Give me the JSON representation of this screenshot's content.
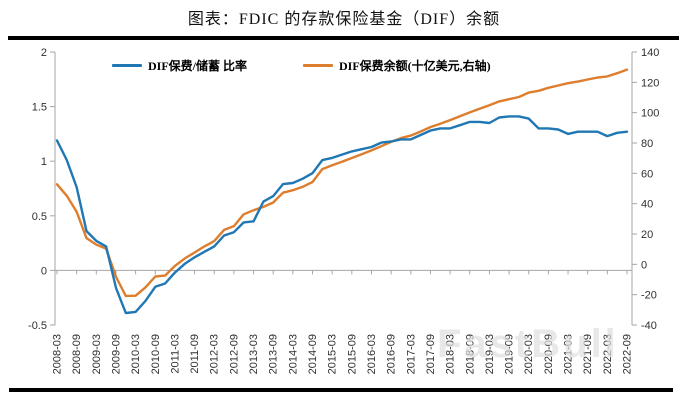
{
  "page": {
    "title": "图表：FDIC 的存款保险基金（DIF）余额"
  },
  "legend": {
    "items": [
      {
        "label": "DIF保费/储蓄 比率",
        "color": "#1f77b4"
      },
      {
        "label": "DIF保费余额(十亿美元,右轴)",
        "color": "#dd7e2e"
      }
    ]
  },
  "watermark": {
    "text": "FastBull"
  },
  "chart_data": {
    "type": "line",
    "title": "图表：FDIC 的存款保险基金（DIF）余额",
    "x_start": "2008-03",
    "x_step_months": 3,
    "x_tick_labels": [
      "2008-03",
      "2008-09",
      "2009-03",
      "2009-09",
      "2010-03",
      "2010-09",
      "2011-03",
      "2011-09",
      "2012-03",
      "2012-09",
      "2013-03",
      "2013-09",
      "2014-03",
      "2014-09",
      "2015-03",
      "2015-09",
      "2016-03",
      "2016-09",
      "2017-03",
      "2017-09",
      "2018-03",
      "2018-09",
      "2019-03",
      "2019-09",
      "2020-03",
      "2020-09",
      "2021-03",
      "2021-09",
      "2022-03",
      "2022-09"
    ],
    "left_axis": {
      "min": -0.5,
      "max": 2,
      "ticks": [
        2,
        1.5,
        1,
        0.5,
        0,
        -0.5
      ]
    },
    "right_axis": {
      "min": -40,
      "max": 140,
      "ticks": [
        140,
        120,
        100,
        80,
        60,
        40,
        20,
        0,
        -20,
        -40
      ]
    },
    "grid": false,
    "legend_position": "top",
    "series": [
      {
        "name": "DIF保费/储蓄 比率",
        "axis": "left",
        "color": "#1f77b4",
        "values": [
          1.19,
          1.01,
          0.76,
          0.36,
          0.27,
          0.22,
          -0.16,
          -0.39,
          -0.38,
          -0.28,
          -0.15,
          -0.12,
          -0.02,
          0.06,
          0.12,
          0.17,
          0.22,
          0.32,
          0.35,
          0.44,
          0.45,
          0.63,
          0.68,
          0.79,
          0.8,
          0.84,
          0.89,
          1.01,
          1.03,
          1.06,
          1.09,
          1.11,
          1.13,
          1.17,
          1.18,
          1.2,
          1.2,
          1.24,
          1.28,
          1.3,
          1.3,
          1.33,
          1.36,
          1.36,
          1.35,
          1.4,
          1.41,
          1.41,
          1.39,
          1.3,
          1.3,
          1.29,
          1.25,
          1.27,
          1.27,
          1.27,
          1.23,
          1.26,
          1.27
        ]
      },
      {
        "name": "DIF保费余额(十亿美元,右轴)",
        "axis": "right",
        "color": "#dd7e2e",
        "values": [
          52.8,
          45.2,
          34.6,
          17.3,
          13.0,
          10.4,
          -8.2,
          -20.9,
          -20.7,
          -15.2,
          -8.0,
          -7.4,
          -1.0,
          3.9,
          7.8,
          11.8,
          15.3,
          22.7,
          25.2,
          33.0,
          35.7,
          37.9,
          40.8,
          47.2,
          48.9,
          51.1,
          54.3,
          62.8,
          65.3,
          67.6,
          70.1,
          72.6,
          75.1,
          77.9,
          80.7,
          83.2,
          84.9,
          87.6,
          90.5,
          92.7,
          95.1,
          97.6,
          100.2,
          102.6,
          104.9,
          107.4,
          108.9,
          110.3,
          113.2,
          114.4,
          116.4,
          117.9,
          119.4,
          120.5,
          121.9,
          123.1,
          123.9,
          126.0,
          128.4
        ]
      }
    ]
  }
}
